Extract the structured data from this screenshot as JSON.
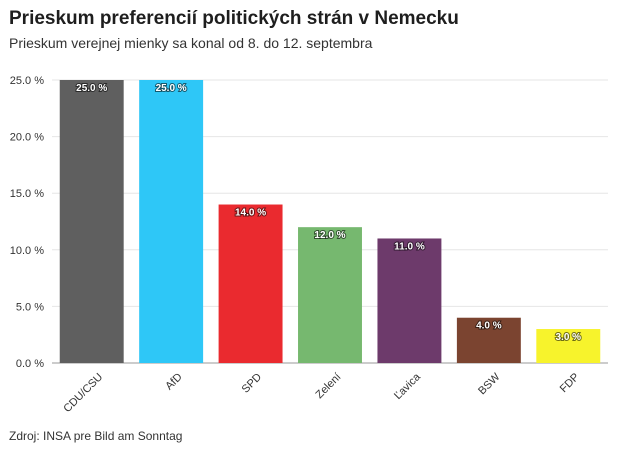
{
  "chart_data": {
    "type": "bar",
    "title": "Prieskum preferencií politických strán v Nemecku",
    "subtitle": "Prieskum verejnej mienky sa konal od 8. do 12. septembra",
    "source": "Zdroj: INSA pre Bild am Sonntag",
    "categories": [
      "CDU/CSU",
      "AfD",
      "SPD",
      "Zelení",
      "Ľavica",
      "BSW",
      "FDP"
    ],
    "values": [
      25.0,
      25.0,
      14.0,
      12.0,
      11.0,
      4.0,
      3.0
    ],
    "value_labels": [
      "25.0 %",
      "25.0 %",
      "14.0 %",
      "12.0 %",
      "11.0 %",
      "4.0 %",
      "3.0 %"
    ],
    "colors": [
      "#5f5f5f",
      "#2ec7f7",
      "#ea2a2f",
      "#76b86f",
      "#6d3a6b",
      "#7b4430",
      "#f7f32c"
    ],
    "yticks": [
      0,
      5,
      10,
      15,
      20,
      25
    ],
    "ytick_labels": [
      "0.0 %",
      "5.0 %",
      "10.0 %",
      "15.0 %",
      "20.0 %",
      "25.0 %"
    ],
    "ylim": [
      0,
      25
    ],
    "xlabel": "",
    "ylabel": "",
    "grid": true
  }
}
